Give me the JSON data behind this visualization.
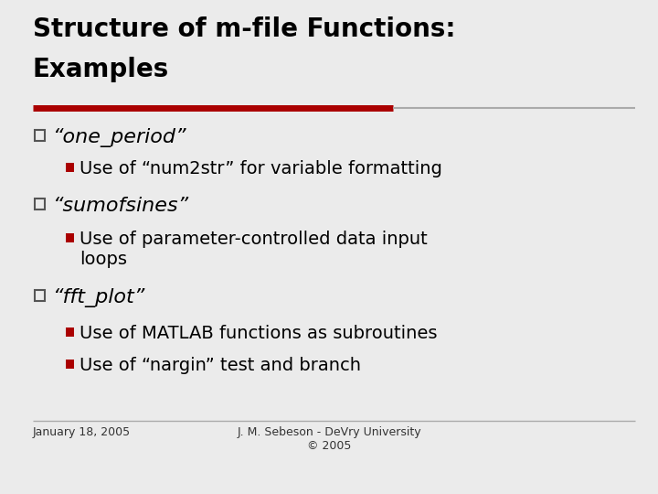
{
  "title_line1": "Structure of m-file Functions:",
  "title_line2": "Examples",
  "bg_color": "#ebebeb",
  "title_color": "#000000",
  "title_fontsize": 20,
  "divider_color_left": "#aa0000",
  "divider_color_right": "#aaaaaa",
  "bullet1_label": "“one_period”",
  "bullet1_sub": [
    "Use of “num2str” for variable formatting"
  ],
  "bullet2_label": "“sumofsines”",
  "bullet2_sub": [
    "Use of parameter-controlled data input\nloops"
  ],
  "bullet3_label": "“fft_plot”",
  "bullet3_sub": [
    "Use of MATLAB functions as subroutines",
    "Use of “nargin” test and branch"
  ],
  "square_color": "#555555",
  "red_square_color": "#aa0000",
  "main_bullet_fontsize": 16,
  "sub_bullet_fontsize": 14,
  "footer_left": "January 18, 2005",
  "footer_center": "J. M. Sebeson - DeVry University\n© 2005",
  "footer_fontsize": 9,
  "footer_color": "#333333"
}
